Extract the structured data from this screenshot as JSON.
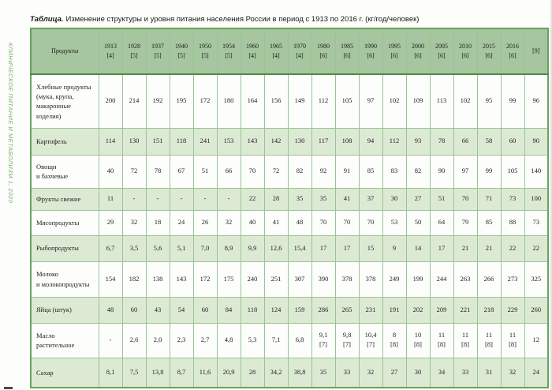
{
  "journal": {
    "sidebar_text": "КЛИНИЧЕСКОЕ ПИТАНИЕ И МЕТАБОЛИЗМ 1, 2020"
  },
  "caption": {
    "label": "Таблица.",
    "text": "Изменение структуры и уровня питания населения России в период с 1913 по 2016 г. (кг/год/человек)"
  },
  "colors": {
    "header_bg": "#a5c69e",
    "header_grid": "#8cb886",
    "stripe_bg": "#dcead4",
    "grid": "#9ac394",
    "outer_border": "#68a35f",
    "header_rule": "#4d8a47",
    "sidebar_green": "#74b268"
  },
  "chart_data": {
    "type": "table",
    "title": "Изменение структуры и уровня питания населения России в период с 1913 по 2016 г. (кг/год/человек)",
    "columns": [
      "Продукты",
      "1913\n[4]",
      "1928\n[5]",
      "1937\n[5]",
      "1940\n[5]",
      "1950\n[5]",
      "1954\n[5]",
      "1960\n[4]",
      "1965\n[4]",
      "1970\n[4]",
      "1980\n[6]",
      "1985\n[6]",
      "1990\n[6]",
      "1995\n[6]",
      "2000\n[6]",
      "2005\n[6]",
      "2010\n[6]",
      "2015\n[6]",
      "2016\n[6]",
      "[9]"
    ],
    "rows": [
      {
        "product": "Хлебные продукты\n(мука, крупа,\nмакаронные\nизделия)",
        "values": [
          "200",
          "214",
          "192",
          "195",
          "172",
          "180",
          "164",
          "156",
          "149",
          "112",
          "105",
          "97",
          "102",
          "109",
          "113",
          "102",
          "95",
          "99",
          "96"
        ]
      },
      {
        "product": "Картофель",
        "values": [
          "114",
          "130",
          "151",
          "118",
          "241",
          "153",
          "143",
          "142",
          "130",
          "117",
          "108",
          "94",
          "112",
          "93",
          "78",
          "66",
          "58",
          "60",
          "90"
        ]
      },
      {
        "product": "Овощи\nи бахчевые",
        "values": [
          "40",
          "72",
          "78",
          "67",
          "51",
          "66",
          "70",
          "72",
          "82",
          "92",
          "91",
          "85",
          "83",
          "82",
          "90",
          "97",
          "99",
          "105",
          "140"
        ]
      },
      {
        "product": "Фрукты свежие",
        "values": [
          "11",
          "-",
          "-",
          "-",
          "-",
          "-",
          "22",
          "28",
          "35",
          "35",
          "41",
          "37",
          "30",
          "27",
          "51",
          "70",
          "71",
          "73",
          "100"
        ]
      },
      {
        "product": "Мясопродукты",
        "values": [
          "29",
          "32",
          "18",
          "24",
          "26",
          "32",
          "40",
          "41",
          "48",
          "70",
          "70",
          "70",
          "53",
          "50",
          "64",
          "79",
          "85",
          "88",
          "73"
        ]
      },
      {
        "product": "Рыбопродукты",
        "values": [
          "6,7",
          "3,5",
          "5,6",
          "5,1",
          "7,0",
          "8,9",
          "9,9",
          "12,6",
          "15,4",
          "17",
          "17",
          "15",
          "9",
          "14",
          "17",
          "21",
          "21",
          "22",
          "22"
        ]
      },
      {
        "product": "Молоко\nи молокопродукты",
        "values": [
          "154",
          "182",
          "138",
          "143",
          "172",
          "175",
          "240",
          "251",
          "307",
          "390",
          "378",
          "378",
          "249",
          "199",
          "244",
          "263",
          "266",
          "273",
          "325"
        ]
      },
      {
        "product": "Яйца (штук)",
        "values": [
          "48",
          "60",
          "43",
          "54",
          "60",
          "84",
          "118",
          "124",
          "159",
          "286",
          "265",
          "231",
          "191",
          "202",
          "209",
          "221",
          "218",
          "229",
          "260"
        ]
      },
      {
        "product": "Масло\nрастительное",
        "values": [
          "-",
          "2,6",
          "2,0",
          "2,3",
          "2,7",
          "4,8",
          "5,3",
          "7,1",
          "6,8",
          "9,1\n[7]",
          "9,8\n[7]",
          "10,4\n[7]",
          "8\n[8]",
          "10\n[8]",
          "11\n[8]",
          "11\n[8]",
          "11\n[8]",
          "11\n[8]",
          "12"
        ]
      },
      {
        "product": "Сахар",
        "values": [
          "8,1",
          "7,5",
          "13,8",
          "8,7",
          "11,6",
          "20,9",
          "28",
          "34,2",
          "38,8",
          "35",
          "33",
          "32",
          "27",
          "30",
          "34",
          "33",
          "31",
          "32",
          "24"
        ]
      }
    ]
  }
}
